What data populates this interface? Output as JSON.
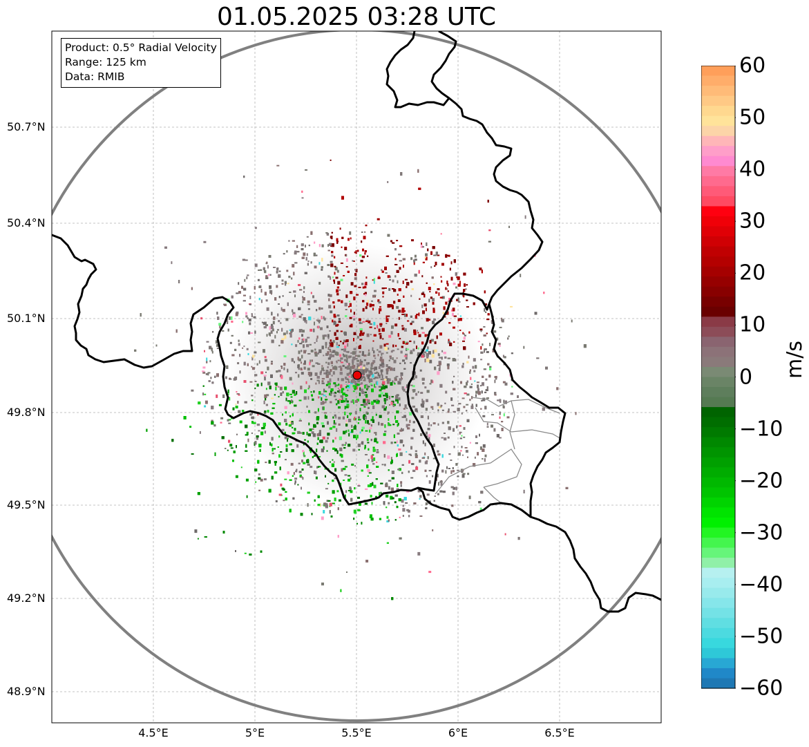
{
  "title": "01.05.2025 03:28 UTC",
  "info": {
    "product": "Product: 0.5° Radial Velocity",
    "range": "Range: 125 km",
    "data": "Data: RMIB"
  },
  "map": {
    "lon_range": [
      4.0,
      7.0
    ],
    "lat_range": [
      48.8,
      51.0
    ],
    "radar_site": {
      "lon": 5.5,
      "lat": 49.915
    },
    "range_km": 125,
    "gridlines": true
  },
  "axes": {
    "y_ticks": [
      {
        "value": 48.9,
        "label": "48.9°N"
      },
      {
        "value": 49.2,
        "label": "49.2°N"
      },
      {
        "value": 49.5,
        "label": "49.5°N"
      },
      {
        "value": 49.8,
        "label": "49.8°N"
      },
      {
        "value": 50.1,
        "label": "50.1°N"
      },
      {
        "value": 50.4,
        "label": "50.4°N"
      },
      {
        "value": 50.7,
        "label": "50.7°N"
      }
    ],
    "x_ticks": [
      {
        "value": 4.5,
        "label": "4.5°E"
      },
      {
        "value": 5.0,
        "label": "5°E"
      },
      {
        "value": 5.5,
        "label": "5.5°E"
      },
      {
        "value": 6.0,
        "label": "6°E"
      },
      {
        "value": 6.5,
        "label": "6.5°E"
      }
    ]
  },
  "colorbar": {
    "unit": "m/s",
    "min": -60,
    "max": 60,
    "ticks": [
      {
        "value": 60,
        "label": "60"
      },
      {
        "value": 50,
        "label": "50"
      },
      {
        "value": 40,
        "label": "40"
      },
      {
        "value": 30,
        "label": "30"
      },
      {
        "value": 20,
        "label": "20"
      },
      {
        "value": 10,
        "label": "10"
      },
      {
        "value": 0,
        "label": "0"
      },
      {
        "value": -10,
        "label": "−10"
      },
      {
        "value": -20,
        "label": "−20"
      },
      {
        "value": -30,
        "label": "−30"
      },
      {
        "value": -40,
        "label": "−40"
      },
      {
        "value": -50,
        "label": "−50"
      },
      {
        "value": -60,
        "label": "−60"
      }
    ],
    "colors_top_to_bottom": [
      "#ff9f5a",
      "#ffad6a",
      "#ffbb78",
      "#ffc985",
      "#ffd88f",
      "#ffe39a",
      "#fcd4a8",
      "#ffb6b8",
      "#ff9ec9",
      "#ff8ad0",
      "#ff7aa5",
      "#ff6a8e",
      "#ff5a78",
      "#ff4a62",
      "#ff0010",
      "#f00008",
      "#e00006",
      "#d00004",
      "#c00002",
      "#b40000",
      "#a50000",
      "#960000",
      "#880000",
      "#780000",
      "#6a0000",
      "#8a3a46",
      "#8c4c58",
      "#8a6470",
      "#8c7278",
      "#8a7a7a",
      "#7a8a74",
      "#6a8466",
      "#5e7e5c",
      "#557a52",
      "#006400",
      "#006e00",
      "#007a00",
      "#008800",
      "#009400",
      "#00a000",
      "#00ac00",
      "#00b800",
      "#00c400",
      "#00d400",
      "#00e400",
      "#00f000",
      "#22f522",
      "#44f54e",
      "#66f57a",
      "#90f0a8",
      "#b6f0f0",
      "#a8eef0",
      "#98eaec",
      "#86e6ea",
      "#74e2e6",
      "#60dee2",
      "#4cdae0",
      "#38d8de",
      "#2ec8d8",
      "#28a8d4",
      "#2088c8",
      "#1f78b4"
    ],
    "accent_dark_red": "#8b0000",
    "accent_grey": "#807878",
    "accent_green": "#00a000"
  }
}
